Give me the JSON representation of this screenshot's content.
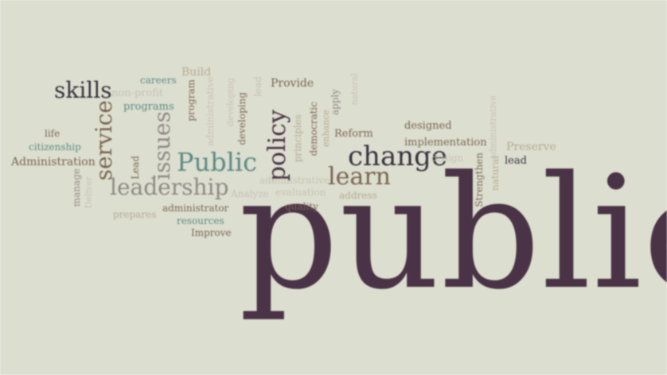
{
  "colors": {
    "background": "#dcdecf",
    "dark": "#3a3340",
    "plum": "#4a3346",
    "teal": "#5e8a86",
    "brown": "#7a6552",
    "tan": "#b5ab97",
    "gray": "#8f8a86"
  },
  "words": {
    "public_big": "public",
    "skills": "skills",
    "service": "service",
    "issues": "issues",
    "public_mid": "Public",
    "policy": "policy",
    "change": "change",
    "learn": "learn",
    "leadership": "leadership",
    "careers": "careers",
    "build": "Build",
    "non_profit": "non-profit",
    "programs": "programs",
    "program": "program",
    "provide": "Provide",
    "developing": "developing",
    "principles": "principles",
    "democratic": "democratic",
    "apply": "apply",
    "enhance": "enhance",
    "reform": "Reform",
    "designed": "designed",
    "implementation": "implementation",
    "design": "design",
    "preserve": "Preserve",
    "lead_right": "lead",
    "strengthen": "Strengthen",
    "natural": "natural",
    "life": "life",
    "citizenship": "citizenship",
    "administration": "Administration",
    "lead_left": "Lead",
    "manage": "manage",
    "deliver": "Deliver",
    "analyze": "Analyze",
    "evaluation": "evaluation",
    "address": "address",
    "quality": "quality",
    "prepares": "prepares",
    "administrator": "administrator",
    "resources": "resources",
    "improve": "Improve",
    "administrative": "administrative"
  }
}
